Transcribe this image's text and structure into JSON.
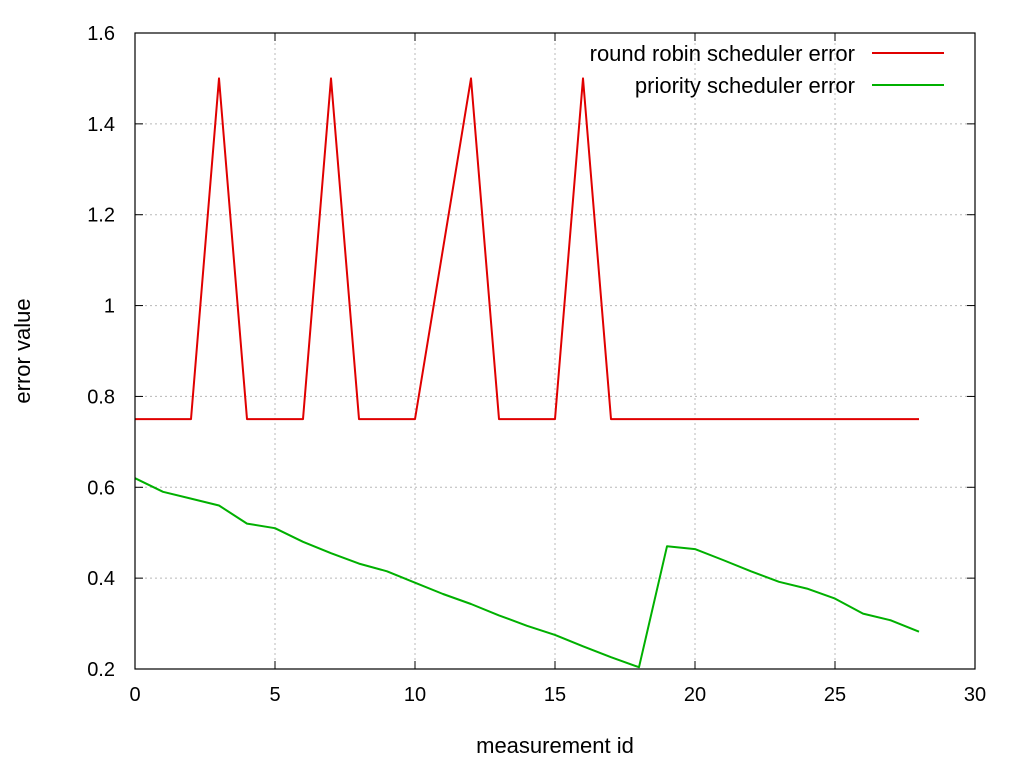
{
  "chart_data": {
    "type": "line",
    "title": "",
    "xlabel": "measurement id",
    "ylabel": "error value",
    "xlim": [
      0,
      30
    ],
    "ylim": [
      0.2,
      1.6
    ],
    "xticks": [
      0,
      5,
      10,
      15,
      20,
      25,
      30
    ],
    "yticks": [
      0.2,
      0.4,
      0.6,
      0.8,
      1.0,
      1.2,
      1.4,
      1.6
    ],
    "xtick_labels": [
      "0",
      "5",
      "10",
      "15",
      "20",
      "25",
      "30"
    ],
    "ytick_labels": [
      "0.2",
      "0.4",
      "0.6",
      "0.8",
      "1",
      "1.2",
      "1.4",
      "1.6"
    ],
    "grid": true,
    "legend_position": "top-right",
    "series": [
      {
        "name": "round robin scheduler error",
        "color": "#e00000",
        "x": [
          0,
          1,
          2,
          3,
          4,
          5,
          6,
          7,
          8,
          9,
          10,
          11,
          12,
          13,
          14,
          15,
          16,
          17,
          18,
          19,
          20,
          21,
          22,
          23,
          24,
          25,
          26,
          27,
          28
        ],
        "y": [
          0.75,
          0.75,
          0.75,
          1.5,
          0.75,
          0.75,
          0.75,
          1.5,
          0.75,
          0.75,
          0.75,
          1.125,
          1.5,
          0.75,
          0.75,
          0.75,
          1.5,
          0.75,
          0.75,
          0.75,
          0.75,
          0.75,
          0.75,
          0.75,
          0.75,
          0.75,
          0.75,
          0.75,
          0.75
        ]
      },
      {
        "name": "priority scheduler error",
        "color": "#00b000",
        "x": [
          0,
          1,
          2,
          3,
          4,
          5,
          6,
          7,
          8,
          9,
          10,
          11,
          12,
          13,
          14,
          15,
          16,
          17,
          18,
          19,
          20,
          21,
          22,
          23,
          24,
          25,
          26,
          27,
          28
        ],
        "y": [
          0.62,
          0.59,
          0.575,
          0.56,
          0.52,
          0.51,
          0.48,
          0.455,
          0.432,
          0.415,
          0.39,
          0.365,
          0.343,
          0.318,
          0.295,
          0.275,
          0.25,
          0.226,
          0.204,
          0.47,
          0.464,
          0.44,
          0.415,
          0.392,
          0.377,
          0.355,
          0.322,
          0.307,
          0.282
        ]
      }
    ]
  }
}
